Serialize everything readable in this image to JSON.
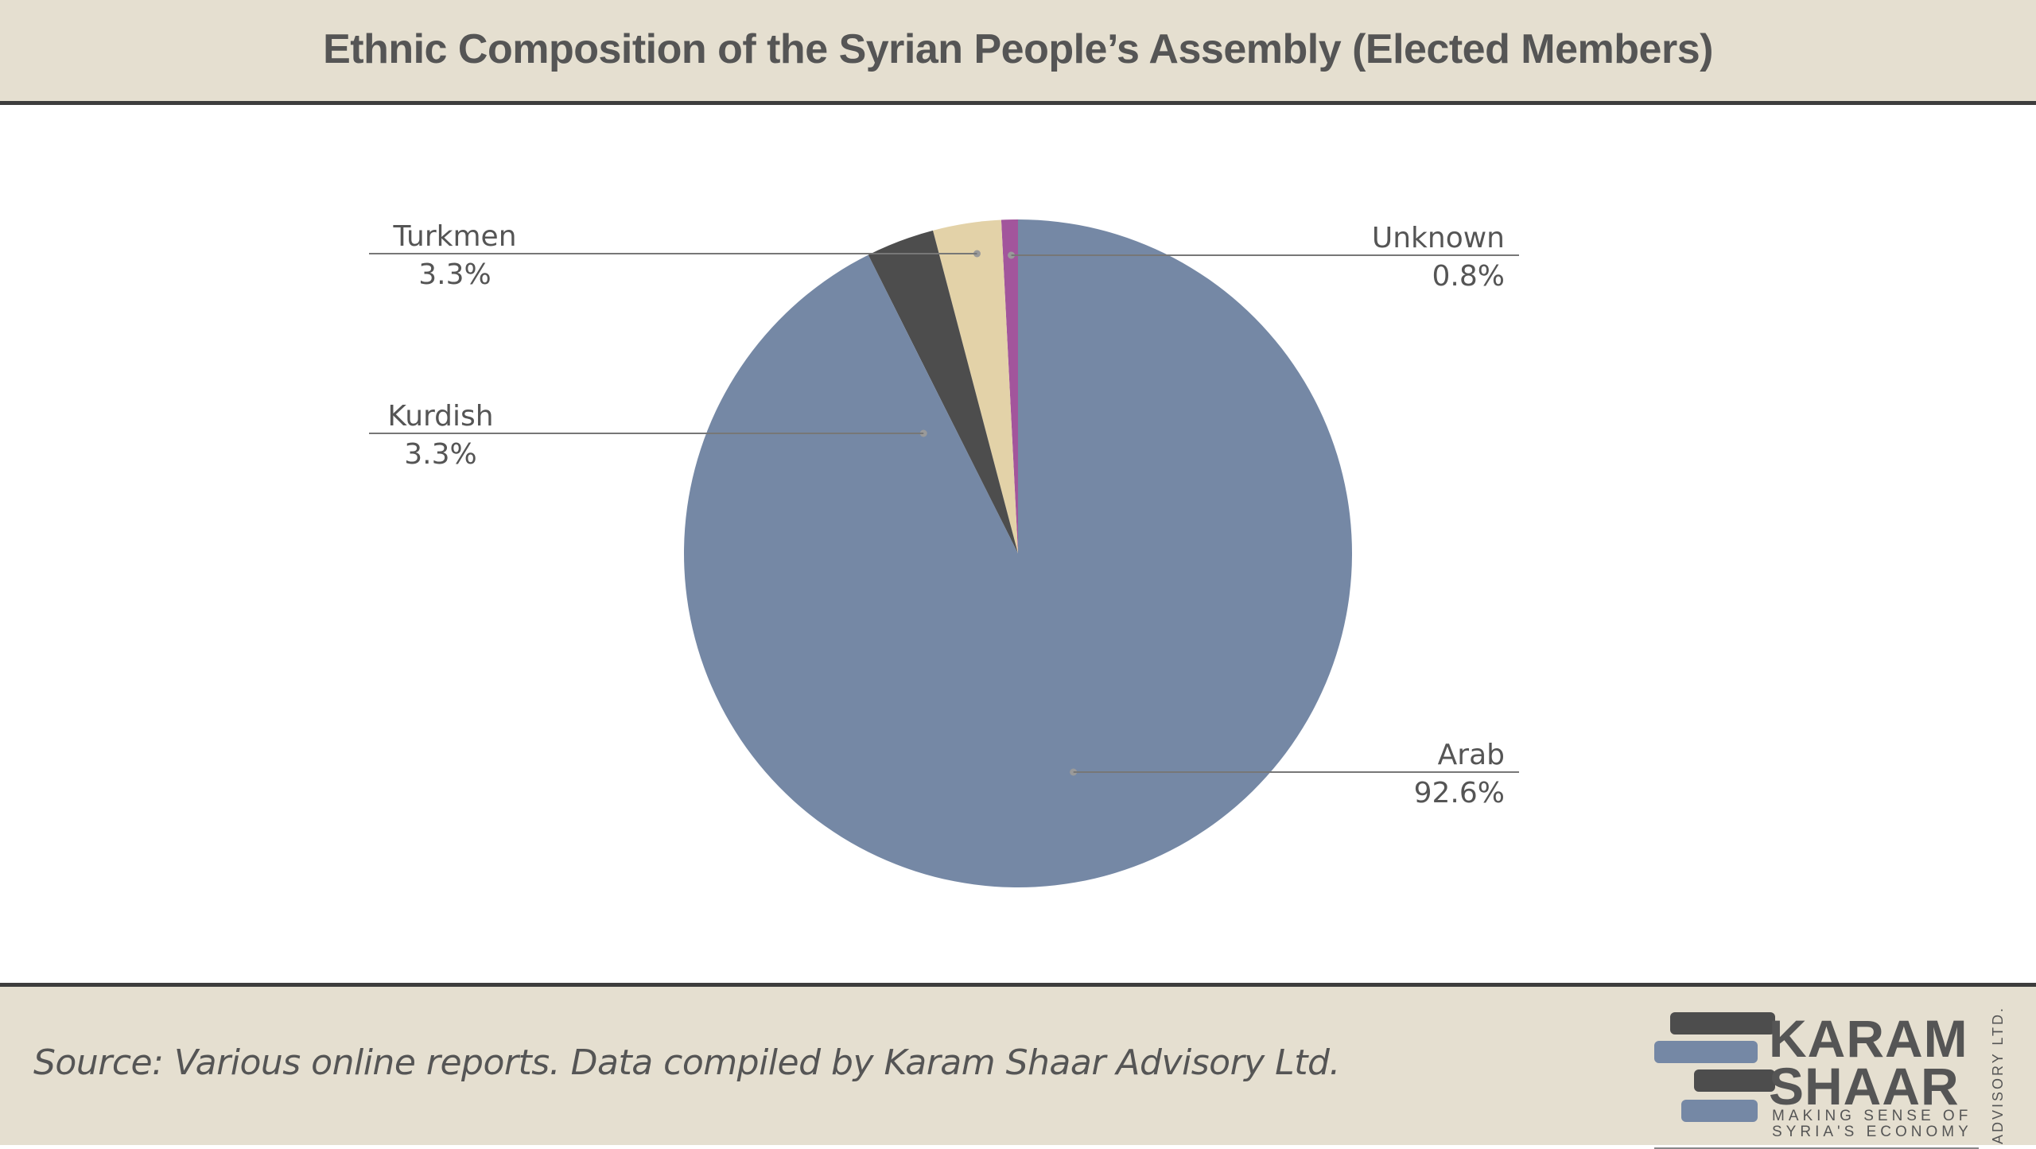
{
  "title": "Ethnic Composition of the Syrian People’s Assembly (Elected Members)",
  "source": "Source: Various online reports. Data compiled by Karam Shaar Advisory Ltd.",
  "logo": {
    "line1": "KARAM",
    "line2": "SHAAR",
    "tagline1": "MAKING SENSE OF",
    "tagline2": "SYRIA'S ECONOMY",
    "vertical": "ADVISORY LTD."
  },
  "colors": {
    "header_bg": "#e5dfd0",
    "rule": "#3d3d3d",
    "text": "#555555"
  },
  "chart_data": {
    "type": "pie",
    "title": "Ethnic Composition of the Syrian People’s Assembly (Elected Members)",
    "start_angle_deg": 0,
    "direction": "clockwise",
    "slices": [
      {
        "label": "Arab",
        "value": 92.6,
        "display": "92.6%",
        "color": "#7588a5"
      },
      {
        "label": "Kurdish",
        "value": 3.3,
        "display": "3.3%",
        "color": "#4d4d4d"
      },
      {
        "label": "Turkmen",
        "value": 3.3,
        "display": "3.3%",
        "color": "#e3d2a8"
      },
      {
        "label": "Unknown",
        "value": 0.8,
        "display": "0.8%",
        "color": "#a2559c"
      }
    ]
  }
}
